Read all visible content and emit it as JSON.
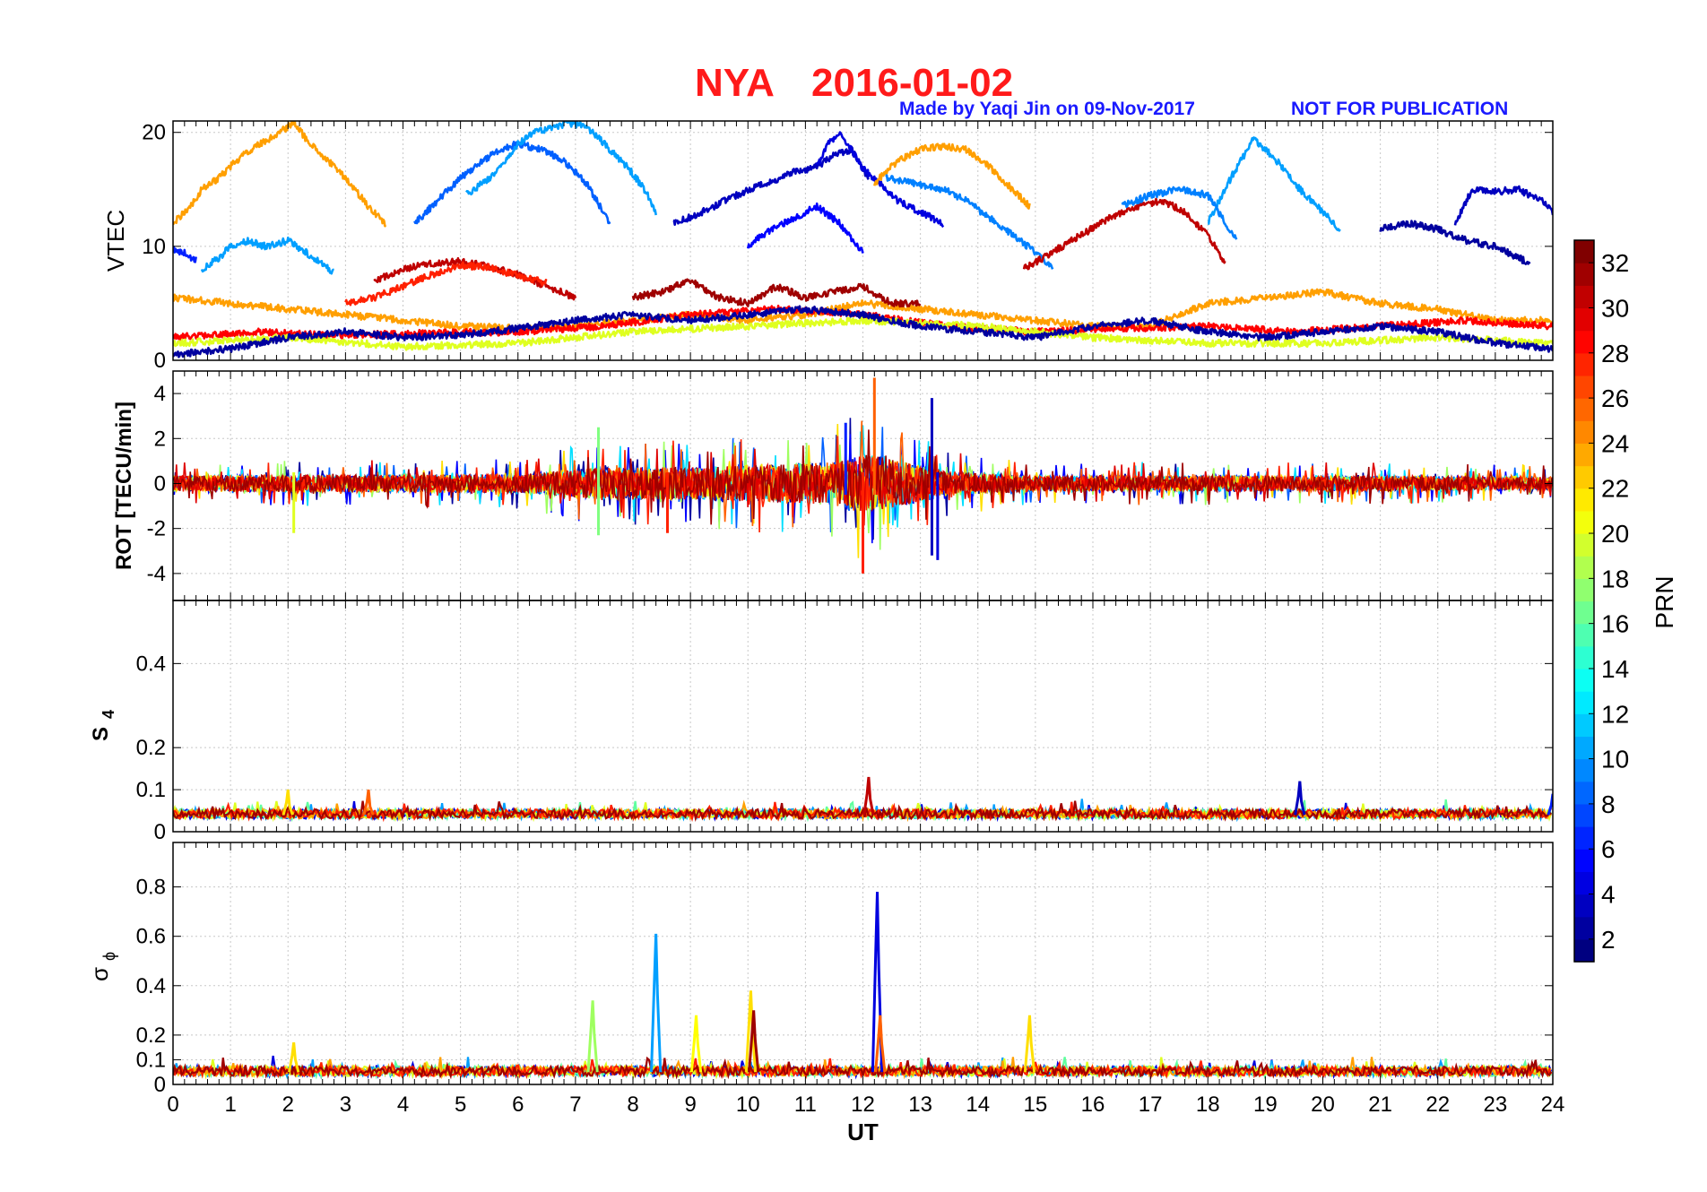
{
  "header": {
    "title_station": "NYA",
    "title_date": "2016-01-02",
    "credit": "Made by Yaqi Jin on 09-Nov-2017",
    "notice": "NOT FOR PUBLICATION"
  },
  "colors": {
    "title": "#ff1a1a",
    "credit": "#1a1aff",
    "colormap": "jet"
  },
  "chart_data": [
    {
      "type": "line",
      "panel": "VTEC",
      "ylabel": "VTEC",
      "ylim": [
        0,
        21
      ],
      "yticks": [
        0,
        10,
        20
      ],
      "xlim": [
        0,
        24
      ],
      "color_by": "PRN",
      "grid": true,
      "series": [
        {
          "prn": 24,
          "x": [
            0.0,
            0.3,
            0.5,
            0.8,
            1.0,
            1.2,
            1.5,
            1.8,
            2.0,
            2.1,
            2.3,
            2.6,
            3.0,
            3.4,
            3.7
          ],
          "values": [
            12,
            13.5,
            15,
            16,
            17,
            18,
            19,
            19.8,
            20.5,
            21,
            19.5,
            18,
            16,
            13.5,
            12
          ]
        },
        {
          "prn": 10,
          "x": [
            0.5,
            0.8,
            1.0,
            1.3,
            1.6,
            2.0,
            2.3,
            2.6,
            2.8
          ],
          "values": [
            8,
            9,
            10,
            10.5,
            10,
            10.5,
            9.5,
            8.5,
            7.7
          ]
        },
        {
          "prn": 6,
          "x": [
            0.0,
            0.2,
            0.4
          ],
          "values": [
            9.8,
            9.4,
            8.8
          ]
        },
        {
          "prn": 8,
          "x": [
            4.2,
            4.6,
            5.0,
            5.4,
            5.7,
            6.0,
            6.4,
            6.8,
            7.2,
            7.6
          ],
          "values": [
            12,
            14,
            16,
            17.5,
            18.5,
            19,
            18.5,
            17.5,
            15.5,
            12
          ]
        },
        {
          "prn": 10,
          "x": [
            5.1,
            5.5,
            5.8,
            6.0,
            6.3,
            6.6,
            6.9,
            7.2,
            7.5,
            7.9,
            8.2,
            8.4
          ],
          "values": [
            14.5,
            16,
            17.5,
            19,
            20,
            20.5,
            20.8,
            20.5,
            19,
            17,
            15,
            13
          ]
        },
        {
          "prn": 31,
          "x": [
            3.5,
            4.0,
            4.5,
            5.0,
            5.5,
            6.0,
            6.5,
            7.0
          ],
          "values": [
            7,
            8,
            8.5,
            8.7,
            8.2,
            7.5,
            6.5,
            5.5
          ]
        },
        {
          "prn": 28,
          "x": [
            3.0,
            3.5,
            4.0,
            4.5,
            5.0,
            5.5,
            6.0,
            6.5
          ],
          "values": [
            5,
            5.5,
            6.5,
            7.5,
            8.3,
            8.2,
            7.4,
            6.8
          ]
        },
        {
          "prn": 3,
          "x": [
            8.7,
            9.2,
            9.8,
            10.3,
            10.8,
            11.2,
            11.5,
            11.8,
            12.1
          ],
          "values": [
            12,
            13,
            14.5,
            15.5,
            16.5,
            17,
            18,
            18.5,
            16
          ]
        },
        {
          "prn": 4,
          "x": [
            11.2,
            11.4,
            11.6,
            11.8,
            12.0,
            12.3,
            12.6,
            13.0,
            13.4
          ],
          "values": [
            17,
            19,
            20,
            18.5,
            16.8,
            15.5,
            14,
            13,
            12
          ]
        },
        {
          "prn": 5,
          "x": [
            10.0,
            10.4,
            10.8,
            11.2,
            11.6,
            12.0
          ],
          "values": [
            10,
            11.5,
            12.5,
            13.5,
            12,
            9.5
          ]
        },
        {
          "prn": 24,
          "x": [
            12.2,
            12.6,
            13.0,
            13.4,
            13.8,
            14.2,
            14.6,
            14.9
          ],
          "values": [
            15.5,
            17.5,
            18.5,
            18.8,
            18.5,
            17,
            15,
            13.5
          ]
        },
        {
          "prn": 9,
          "x": [
            12.4,
            12.9,
            13.4,
            13.8,
            14.2,
            14.6,
            15.0,
            15.3
          ],
          "values": [
            16,
            15.5,
            15,
            14,
            12.5,
            11,
            9.5,
            8
          ]
        },
        {
          "prn": 31,
          "x": [
            14.8,
            15.3,
            15.8,
            16.3,
            16.8,
            17.2,
            17.6,
            18.0,
            18.3
          ],
          "values": [
            8,
            9.5,
            11,
            12.5,
            13.5,
            14,
            13,
            11,
            8.5
          ]
        },
        {
          "prn": 10,
          "x": [
            18.0,
            18.4,
            18.8,
            19.2,
            19.6,
            20.0,
            20.3
          ],
          "values": [
            12,
            16,
            19.5,
            17.5,
            15,
            13,
            11.5
          ]
        },
        {
          "prn": 9,
          "x": [
            16.5,
            17.0,
            17.5,
            18.0,
            18.5
          ],
          "values": [
            13.5,
            14.5,
            15,
            14.5,
            10.5
          ]
        },
        {
          "prn": 3,
          "x": [
            22.3,
            22.6,
            23.0,
            23.4,
            23.8,
            24.0
          ],
          "values": [
            12,
            15,
            14.8,
            15,
            14,
            13
          ]
        },
        {
          "prn": 2,
          "x": [
            21.0,
            21.5,
            22.0,
            22.5,
            23.0,
            23.6
          ],
          "values": [
            11.5,
            12,
            11.5,
            10.5,
            10,
            8.5
          ]
        },
        {
          "prn": 24,
          "x": [
            0.0,
            1.0,
            2.0,
            3.0,
            4.0,
            5.0,
            6.0,
            7.0,
            8.0,
            9.0,
            10.0,
            11.0,
            12.0,
            13.0,
            14.0,
            15.0,
            16.0,
            17.0,
            18.0,
            19.0,
            20.0,
            21.0,
            22.0,
            23.0,
            24.0
          ],
          "values": [
            5.5,
            5,
            4.5,
            4,
            3.5,
            3,
            2.8,
            3,
            3.5,
            4,
            3.5,
            4,
            5,
            4.5,
            4,
            3.5,
            3,
            3,
            5,
            5.5,
            6,
            5,
            4.5,
            3.5,
            3.5
          ]
        },
        {
          "prn": 32,
          "x": [
            8.0,
            8.5,
            9.0,
            9.5,
            10.0,
            10.5,
            11.0,
            11.5,
            12.0,
            12.5,
            13.0
          ],
          "values": [
            5.5,
            6,
            7,
            5.5,
            5,
            6.5,
            5.5,
            6,
            6.5,
            5,
            5
          ]
        },
        {
          "prn": 29,
          "x": [
            0.0,
            1.5,
            3.0,
            4.5,
            6.0,
            7.5,
            9.0,
            10.5,
            12.0,
            13.5,
            15.0,
            16.5,
            18.0,
            19.5,
            21.0,
            22.5,
            24.0
          ],
          "values": [
            2,
            2.5,
            2.2,
            2.4,
            2.5,
            3,
            4,
            4.5,
            4,
            3,
            2.5,
            2.8,
            3,
            2.5,
            3,
            3.5,
            3
          ]
        },
        {
          "prn": 20,
          "x": [
            0.0,
            2.0,
            4.0,
            6.0,
            8.0,
            10.0,
            12.0,
            14.0,
            16.0,
            18.0,
            20.0,
            22.0,
            24.0
          ],
          "values": [
            1.5,
            2,
            1.2,
            1.5,
            2.5,
            3,
            3.5,
            3,
            2,
            1.5,
            1.5,
            2,
            1.5
          ]
        },
        {
          "prn": 2,
          "x": [
            0.0,
            1.0,
            2.0,
            3.0,
            4.0,
            5.0,
            6.0,
            7.0,
            8.0,
            9.0,
            10.0,
            11.0,
            12.0,
            13.0,
            14.0,
            15.0,
            16.0,
            17.0,
            18.0,
            19.0,
            20.0,
            21.0,
            22.0,
            23.0,
            24.0
          ],
          "values": [
            0.5,
            1,
            2,
            2.5,
            2,
            2.2,
            2.8,
            3.5,
            4,
            3.5,
            4,
            4.5,
            4,
            3,
            2.5,
            2,
            3,
            3.5,
            2.5,
            2,
            2.5,
            3,
            2.5,
            1.5,
            1
          ]
        }
      ]
    },
    {
      "type": "line",
      "panel": "ROT",
      "ylabel": "ROT [TECU/min]",
      "ylim": [
        -5.2,
        5
      ],
      "yticks": [
        -4,
        -2,
        0,
        2,
        4
      ],
      "xlim": [
        0,
        24
      ],
      "color_by": "PRN",
      "grid": true,
      "noise_envelope": {
        "x": [
          0,
          6,
          7.5,
          9,
          10.5,
          11.5,
          12,
          12.5,
          13,
          13.5,
          15,
          20,
          24
        ],
        "amplitude": [
          0.6,
          0.7,
          1.2,
          1.2,
          1.4,
          1.6,
          2.2,
          1.8,
          1.4,
          0.9,
          0.6,
          0.6,
          0.5
        ]
      },
      "spikes": [
        {
          "prn": 26,
          "x": 12.2,
          "max": 4.7
        },
        {
          "prn": 3,
          "x": 13.2,
          "max": 3.8,
          "min": -3.2
        },
        {
          "prn": 28,
          "x": 12.0,
          "min": -4.0
        },
        {
          "prn": 4,
          "x": 13.3,
          "min": -3.4
        },
        {
          "prn": 6,
          "x": 11.7,
          "max": 2.7
        },
        {
          "prn": 17,
          "x": 7.4,
          "max": 2.5,
          "min": -2.3
        },
        {
          "prn": 20,
          "x": 2.1,
          "min": -2.2
        },
        {
          "prn": 28,
          "x": 8.6,
          "min": -2.2
        }
      ]
    },
    {
      "type": "line",
      "panel": "S4",
      "ylabel": "S4",
      "ylim": [
        0,
        0.55
      ],
      "yticks": [
        0,
        0.1,
        0.2,
        0.4
      ],
      "xlim": [
        0,
        24
      ],
      "color_by": "PRN",
      "grid": true,
      "baseline": 0.04,
      "peaks": [
        {
          "prn": 31,
          "x": 12.1,
          "value": 0.13
        },
        {
          "prn": 3,
          "x": 19.6,
          "value": 0.12
        },
        {
          "prn": 22,
          "x": 2.0,
          "value": 0.1
        },
        {
          "prn": 26,
          "x": 3.4,
          "value": 0.1
        },
        {
          "prn": 6,
          "x": 24.0,
          "value": 0.09
        }
      ]
    },
    {
      "type": "line",
      "panel": "sigma_phi",
      "ylabel": "σ",
      "ylabel_sub": "ϕ",
      "ylim": [
        0,
        0.98
      ],
      "yticks": [
        0,
        0.1,
        0.2,
        0.4,
        0.6,
        0.8
      ],
      "xlim": [
        0,
        24
      ],
      "xticks": [
        0,
        1,
        2,
        3,
        4,
        5,
        6,
        7,
        8,
        9,
        10,
        11,
        12,
        13,
        14,
        15,
        16,
        17,
        18,
        19,
        20,
        21,
        22,
        23,
        24
      ],
      "xlabel": "UT",
      "color_by": "PRN",
      "grid": true,
      "baseline": 0.05,
      "peaks": [
        {
          "prn": 4,
          "x": 12.25,
          "value": 0.78
        },
        {
          "prn": 10,
          "x": 8.4,
          "value": 0.61
        },
        {
          "prn": 18,
          "x": 7.3,
          "value": 0.34
        },
        {
          "prn": 22,
          "x": 10.05,
          "value": 0.38
        },
        {
          "prn": 22,
          "x": 14.9,
          "value": 0.28
        },
        {
          "prn": 32,
          "x": 10.1,
          "value": 0.3
        },
        {
          "prn": 26,
          "x": 12.3,
          "value": 0.28
        },
        {
          "prn": 21,
          "x": 9.1,
          "value": 0.28
        },
        {
          "prn": 22,
          "x": 2.1,
          "value": 0.17
        }
      ]
    }
  ],
  "colorbar": {
    "label": "PRN",
    "range": [
      1,
      33
    ],
    "ticks": [
      2,
      4,
      6,
      8,
      10,
      12,
      14,
      16,
      18,
      20,
      22,
      24,
      26,
      28,
      30,
      32
    ]
  }
}
